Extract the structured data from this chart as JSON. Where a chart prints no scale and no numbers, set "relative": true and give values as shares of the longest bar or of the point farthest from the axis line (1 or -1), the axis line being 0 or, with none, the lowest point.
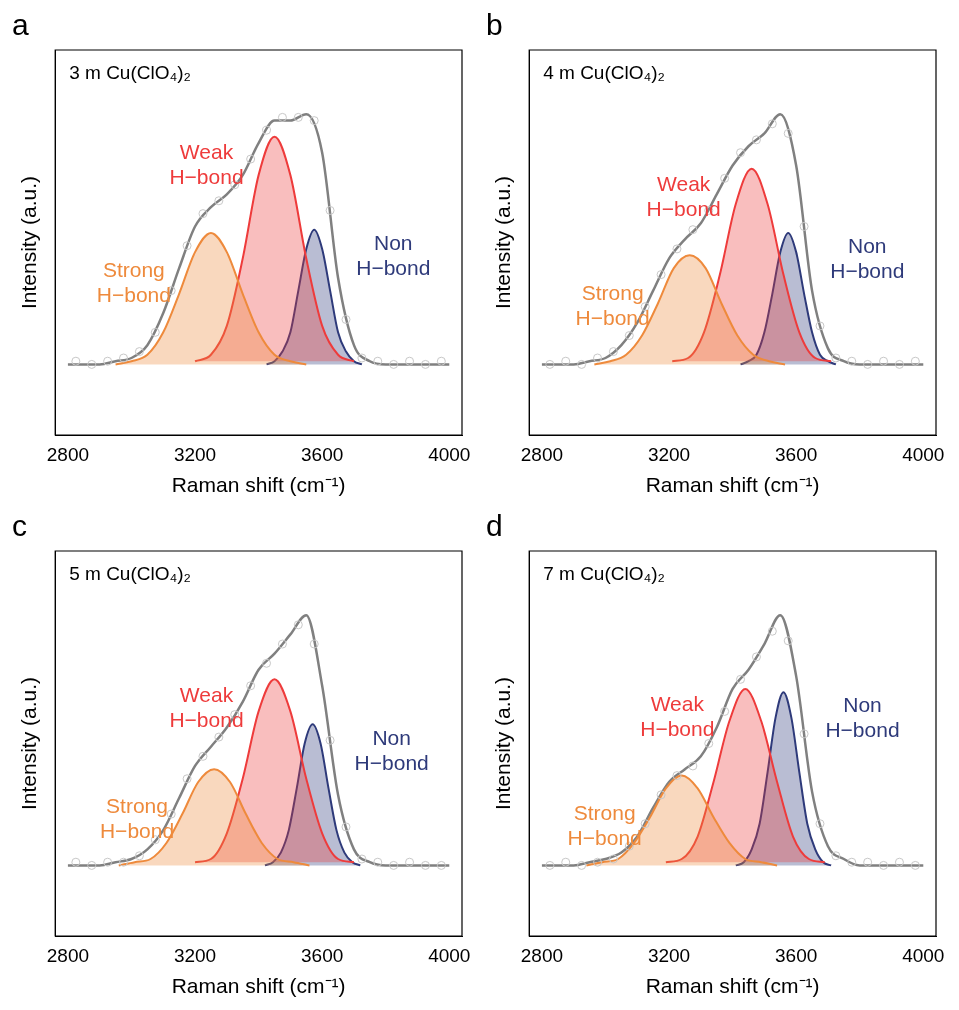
{
  "chart_data": [
    {
      "type": "area",
      "title": "a",
      "subtitle": "3 m Cu(ClO₄)₂",
      "xlabel": "Raman shift (cm⁻¹)",
      "ylabel": "Intensity (a.u.)",
      "relative": true,
      "xlim": [
        2760,
        4040
      ],
      "xticks": [
        2800,
        3200,
        3600,
        4000
      ],
      "tick_labels": "x",
      "legend": false,
      "grid": false,
      "x": [
        2800,
        2850,
        2900,
        2950,
        3000,
        3050,
        3100,
        3150,
        3200,
        3250,
        3300,
        3350,
        3400,
        3450,
        3500,
        3550,
        3600,
        3650,
        3700,
        3750,
        3800,
        3850,
        3900,
        3950,
        4000
      ],
      "series": [
        {
          "type": "scatter",
          "marker": "circle",
          "color": "#c8c8c8",
          "x": [
            2825,
            2875,
            2925,
            2975,
            3025,
            3075,
            3125,
            3175,
            3225,
            3275,
            3325,
            3375,
            3425,
            3475,
            3525,
            3575,
            3625,
            3675,
            3725,
            3775,
            3825,
            3875,
            3925,
            3975
          ],
          "values": [
            0.23,
            0.22,
            0.23,
            0.24,
            0.26,
            0.32,
            0.45,
            0.59,
            0.69,
            0.73,
            0.78,
            0.86,
            0.95,
            0.99,
            0.99,
            0.98,
            0.7,
            0.36,
            0.24,
            0.23,
            0.22,
            0.23,
            0.22,
            0.23
          ]
        },
        {
          "type": "area",
          "name": "Strong H−bond",
          "color": "#ee8a3c",
          "x": [
            2950,
            3000,
            3050,
            3100,
            3150,
            3200,
            3250,
            3300,
            3350,
            3400,
            3450,
            3500,
            3550
          ],
          "values": [
            0.22,
            0.23,
            0.25,
            0.32,
            0.44,
            0.57,
            0.63,
            0.57,
            0.44,
            0.32,
            0.25,
            0.23,
            0.22
          ]
        },
        {
          "type": "area",
          "name": "Weak H−bond",
          "color": "#ee3b3b",
          "x": [
            3200,
            3250,
            3300,
            3350,
            3400,
            3450,
            3500,
            3550,
            3600,
            3650,
            3700
          ],
          "values": [
            0.23,
            0.25,
            0.34,
            0.55,
            0.81,
            0.93,
            0.81,
            0.55,
            0.34,
            0.25,
            0.23
          ]
        },
        {
          "type": "area",
          "name": "Non H−bond",
          "color": "#2e3a7a",
          "x": [
            3425,
            3450,
            3475,
            3500,
            3525,
            3550,
            3575,
            3600,
            3625,
            3650,
            3675,
            3700,
            3725
          ],
          "values": [
            0.22,
            0.23,
            0.26,
            0.32,
            0.45,
            0.58,
            0.64,
            0.58,
            0.45,
            0.32,
            0.26,
            0.23,
            0.22
          ]
        },
        {
          "type": "line",
          "color": "#808080",
          "values": [
            0.22,
            0.22,
            0.22,
            0.23,
            0.24,
            0.28,
            0.38,
            0.52,
            0.65,
            0.71,
            0.75,
            0.81,
            0.91,
            0.98,
            0.98,
            1,
            0.88,
            0.49,
            0.28,
            0.23,
            0.22,
            0.22,
            0.22,
            0.22,
            0.22
          ]
        }
      ]
    },
    {
      "type": "area",
      "title": "b",
      "subtitle": "4 m Cu(ClO₄)₂",
      "xlabel": "Raman shift (cm⁻¹)",
      "ylabel": "Intensity (a.u.)",
      "relative": true,
      "xlim": [
        2760,
        4040
      ],
      "xticks": [
        2800,
        3200,
        3600,
        4000
      ],
      "tick_labels": "x",
      "legend": false,
      "grid": false,
      "x": [
        2800,
        2850,
        2900,
        2950,
        3000,
        3050,
        3100,
        3150,
        3200,
        3250,
        3300,
        3350,
        3400,
        3450,
        3500,
        3550,
        3600,
        3650,
        3700,
        3750,
        3800,
        3850,
        3900,
        3950,
        4000
      ],
      "series": [
        {
          "type": "scatter",
          "marker": "circle",
          "color": "#c8c8c8",
          "x": [
            2825,
            2875,
            2925,
            2975,
            3025,
            3075,
            3125,
            3175,
            3225,
            3275,
            3325,
            3375,
            3425,
            3475,
            3525,
            3575,
            3625,
            3675,
            3725,
            3775,
            3825,
            3875,
            3925,
            3975
          ],
          "values": [
            0.22,
            0.23,
            0.22,
            0.24,
            0.26,
            0.31,
            0.4,
            0.5,
            0.58,
            0.64,
            0.7,
            0.8,
            0.88,
            0.92,
            0.97,
            0.94,
            0.65,
            0.34,
            0.24,
            0.23,
            0.22,
            0.23,
            0.22,
            0.23
          ]
        },
        {
          "type": "area",
          "name": "Strong H−bond",
          "color": "#ee8a3c",
          "x": [
            2965,
            3015,
            3065,
            3115,
            3165,
            3215,
            3265,
            3315,
            3365,
            3415,
            3465,
            3515,
            3565
          ],
          "values": [
            0.22,
            0.23,
            0.25,
            0.31,
            0.41,
            0.52,
            0.56,
            0.52,
            0.41,
            0.31,
            0.25,
            0.23,
            0.22
          ]
        },
        {
          "type": "area",
          "name": "Weak H−bond",
          "color": "#ee3b3b",
          "x": [
            3210,
            3260,
            3310,
            3360,
            3410,
            3460,
            3510,
            3560,
            3610,
            3660,
            3710
          ],
          "values": [
            0.23,
            0.24,
            0.32,
            0.5,
            0.72,
            0.83,
            0.72,
            0.5,
            0.32,
            0.24,
            0.23
          ]
        },
        {
          "type": "area",
          "name": "Non H−bond",
          "color": "#2e3a7a",
          "x": [
            3425,
            3450,
            3475,
            3500,
            3525,
            3550,
            3575,
            3600,
            3625,
            3650,
            3675,
            3700,
            3725
          ],
          "values": [
            0.22,
            0.23,
            0.25,
            0.32,
            0.44,
            0.57,
            0.63,
            0.57,
            0.44,
            0.32,
            0.25,
            0.23,
            0.22
          ]
        },
        {
          "type": "line",
          "color": "#808080",
          "values": [
            0.22,
            0.22,
            0.22,
            0.23,
            0.24,
            0.28,
            0.35,
            0.45,
            0.55,
            0.61,
            0.66,
            0.75,
            0.84,
            0.9,
            0.94,
            1,
            0.84,
            0.45,
            0.27,
            0.23,
            0.22,
            0.22,
            0.22,
            0.22,
            0.22
          ]
        }
      ]
    },
    {
      "type": "area",
      "title": "c",
      "subtitle": "5 m Cu(ClO₄)₂",
      "xlabel": "Raman shift (cm⁻¹)",
      "ylabel": "Intensity (a.u.)",
      "relative": true,
      "xlim": [
        2760,
        4040
      ],
      "xticks": [
        2800,
        3200,
        3600,
        4000
      ],
      "tick_labels": "x",
      "legend": false,
      "grid": false,
      "x": [
        2800,
        2850,
        2900,
        2950,
        3000,
        3050,
        3100,
        3150,
        3200,
        3250,
        3300,
        3350,
        3400,
        3450,
        3500,
        3550,
        3600,
        3650,
        3700,
        3750,
        3800,
        3850,
        3900,
        3950,
        4000
      ],
      "series": [
        {
          "type": "scatter",
          "marker": "circle",
          "color": "#c8c8c8",
          "x": [
            2825,
            2875,
            2925,
            2975,
            3025,
            3075,
            3125,
            3175,
            3225,
            3275,
            3325,
            3375,
            3425,
            3475,
            3525,
            3575,
            3625,
            3675,
            3725,
            3775,
            3825,
            3875,
            3925,
            3975
          ],
          "values": [
            0.23,
            0.22,
            0.23,
            0.23,
            0.25,
            0.3,
            0.38,
            0.49,
            0.56,
            0.62,
            0.69,
            0.78,
            0.85,
            0.91,
            0.97,
            0.91,
            0.61,
            0.34,
            0.24,
            0.23,
            0.22,
            0.23,
            0.22,
            0.22
          ]
        },
        {
          "type": "area",
          "name": "Strong H−bond",
          "color": "#ee8a3c",
          "x": [
            2960,
            3010,
            3060,
            3110,
            3160,
            3210,
            3260,
            3310,
            3360,
            3410,
            3460,
            3510,
            3560
          ],
          "values": [
            0.22,
            0.23,
            0.24,
            0.29,
            0.38,
            0.48,
            0.52,
            0.48,
            0.38,
            0.29,
            0.24,
            0.23,
            0.22
          ]
        },
        {
          "type": "area",
          "name": "Weak H−bond",
          "color": "#ee3b3b",
          "x": [
            3200,
            3250,
            3300,
            3350,
            3400,
            3450,
            3500,
            3550,
            3600,
            3650,
            3700
          ],
          "values": [
            0.23,
            0.24,
            0.32,
            0.49,
            0.7,
            0.8,
            0.7,
            0.49,
            0.32,
            0.24,
            0.23
          ]
        },
        {
          "type": "area",
          "name": "Non H−bond",
          "color": "#2e3a7a",
          "x": [
            3420,
            3445,
            3470,
            3495,
            3520,
            3545,
            3570,
            3595,
            3620,
            3645,
            3670,
            3695,
            3720
          ],
          "values": [
            0.22,
            0.23,
            0.26,
            0.33,
            0.46,
            0.6,
            0.66,
            0.6,
            0.46,
            0.33,
            0.26,
            0.23,
            0.22
          ]
        },
        {
          "type": "line",
          "color": "#808080",
          "values": [
            0.22,
            0.22,
            0.22,
            0.23,
            0.24,
            0.27,
            0.33,
            0.43,
            0.53,
            0.59,
            0.65,
            0.73,
            0.83,
            0.88,
            0.94,
            1,
            0.78,
            0.44,
            0.27,
            0.23,
            0.22,
            0.22,
            0.22,
            0.22,
            0.22
          ]
        }
      ]
    },
    {
      "type": "area",
      "title": "d",
      "subtitle": "7 m Cu(ClO₄)₂",
      "xlabel": "Raman shift (cm⁻¹)",
      "ylabel": "Intensity (a.u.)",
      "relative": true,
      "xlim": [
        2760,
        4040
      ],
      "xticks": [
        2800,
        3200,
        3600,
        4000
      ],
      "tick_labels": "x",
      "legend": false,
      "grid": false,
      "x": [
        2800,
        2850,
        2900,
        2950,
        3000,
        3050,
        3100,
        3150,
        3200,
        3250,
        3300,
        3350,
        3400,
        3450,
        3500,
        3550,
        3600,
        3650,
        3700,
        3750,
        3800,
        3850,
        3900,
        3950,
        4000
      ],
      "series": [
        {
          "type": "scatter",
          "marker": "circle",
          "color": "#c8c8c8",
          "x": [
            2825,
            2875,
            2925,
            2975,
            3025,
            3075,
            3125,
            3175,
            3225,
            3275,
            3325,
            3375,
            3425,
            3475,
            3525,
            3575,
            3625,
            3675,
            3725,
            3775,
            3825,
            3875,
            3925,
            3975
          ],
          "values": [
            0.22,
            0.23,
            0.22,
            0.23,
            0.24,
            0.28,
            0.35,
            0.44,
            0.5,
            0.53,
            0.6,
            0.7,
            0.8,
            0.87,
            0.95,
            0.92,
            0.63,
            0.35,
            0.25,
            0.23,
            0.23,
            0.22,
            0.23,
            0.22
          ]
        },
        {
          "type": "area",
          "name": "Strong H−bond",
          "color": "#ee8a3c",
          "x": [
            2940,
            2990,
            3040,
            3090,
            3140,
            3190,
            3240,
            3290,
            3340,
            3390,
            3440,
            3490,
            3540
          ],
          "values": [
            0.22,
            0.23,
            0.24,
            0.29,
            0.37,
            0.46,
            0.5,
            0.46,
            0.37,
            0.29,
            0.24,
            0.23,
            0.22
          ]
        },
        {
          "type": "area",
          "name": "Weak H−bond",
          "color": "#ee3b3b",
          "x": [
            3190,
            3240,
            3290,
            3340,
            3390,
            3440,
            3490,
            3540,
            3590,
            3640,
            3690
          ],
          "values": [
            0.23,
            0.24,
            0.31,
            0.48,
            0.67,
            0.77,
            0.67,
            0.48,
            0.31,
            0.24,
            0.23
          ]
        },
        {
          "type": "area",
          "name": "Non H−bond",
          "color": "#2e3a7a",
          "x": [
            3410,
            3435,
            3460,
            3485,
            3510,
            3535,
            3560,
            3585,
            3610,
            3635,
            3660,
            3685,
            3710
          ],
          "values": [
            0.22,
            0.23,
            0.27,
            0.35,
            0.51,
            0.68,
            0.76,
            0.68,
            0.51,
            0.35,
            0.27,
            0.23,
            0.22
          ]
        },
        {
          "type": "line",
          "color": "#808080",
          "values": [
            0.22,
            0.22,
            0.22,
            0.23,
            0.24,
            0.26,
            0.31,
            0.4,
            0.48,
            0.52,
            0.56,
            0.65,
            0.77,
            0.83,
            0.91,
            1,
            0.81,
            0.45,
            0.28,
            0.24,
            0.22,
            0.22,
            0.22,
            0.22,
            0.22
          ]
        }
      ]
    }
  ]
}
